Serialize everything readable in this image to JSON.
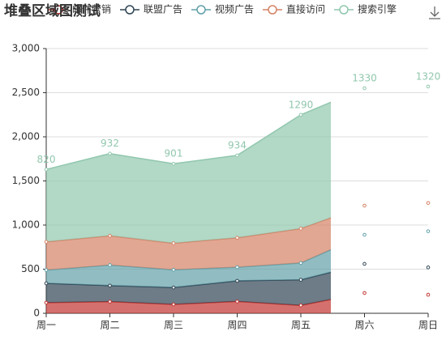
{
  "chart_data": {
    "type": "stacked-area",
    "title": "堆叠区域图测试",
    "categories": [
      "周一",
      "周二",
      "周三",
      "周四",
      "周五",
      "周六",
      "周日"
    ],
    "series": [
      {
        "name": "邮件营销",
        "color": "#c23531",
        "values": [
          120,
          132,
          101,
          134,
          90,
          230,
          210
        ]
      },
      {
        "name": "联盟广告",
        "color": "#2f4554",
        "values": [
          220,
          182,
          191,
          234,
          290,
          330,
          310
        ]
      },
      {
        "name": "视频广告",
        "color": "#61a0a8",
        "values": [
          150,
          232,
          201,
          154,
          190,
          330,
          410
        ]
      },
      {
        "name": "直接访问",
        "color": "#d48265",
        "values": [
          320,
          332,
          301,
          334,
          390,
          330,
          320
        ]
      },
      {
        "name": "搜索引擎",
        "color": "#91c7ae",
        "values": [
          820,
          932,
          901,
          934,
          1290,
          1330,
          1320
        ],
        "labels": true
      }
    ],
    "ylim": [
      0,
      3000
    ],
    "yticks": [
      0,
      500,
      {
        "value": 1000,
        "label": "1,000"
      },
      {
        "value": 1500,
        "label": "1,500"
      },
      {
        "value": 2000,
        "label": "2,000"
      },
      {
        "value": 2500,
        "label": "2,500"
      },
      {
        "value": 3000,
        "label": "3,000"
      }
    ],
    "grid": true
  }
}
